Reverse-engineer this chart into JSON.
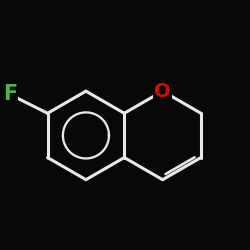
{
  "background_color": "#080808",
  "bond_color": "#e8e8e8",
  "F_color": "#4ab54a",
  "O_color": "#cc1100",
  "bond_width": 2.2,
  "font_size_F": 15,
  "font_size_O": 14,
  "figsize": [
    2.5,
    2.5
  ],
  "dpi": 100,
  "bl": 0.17
}
